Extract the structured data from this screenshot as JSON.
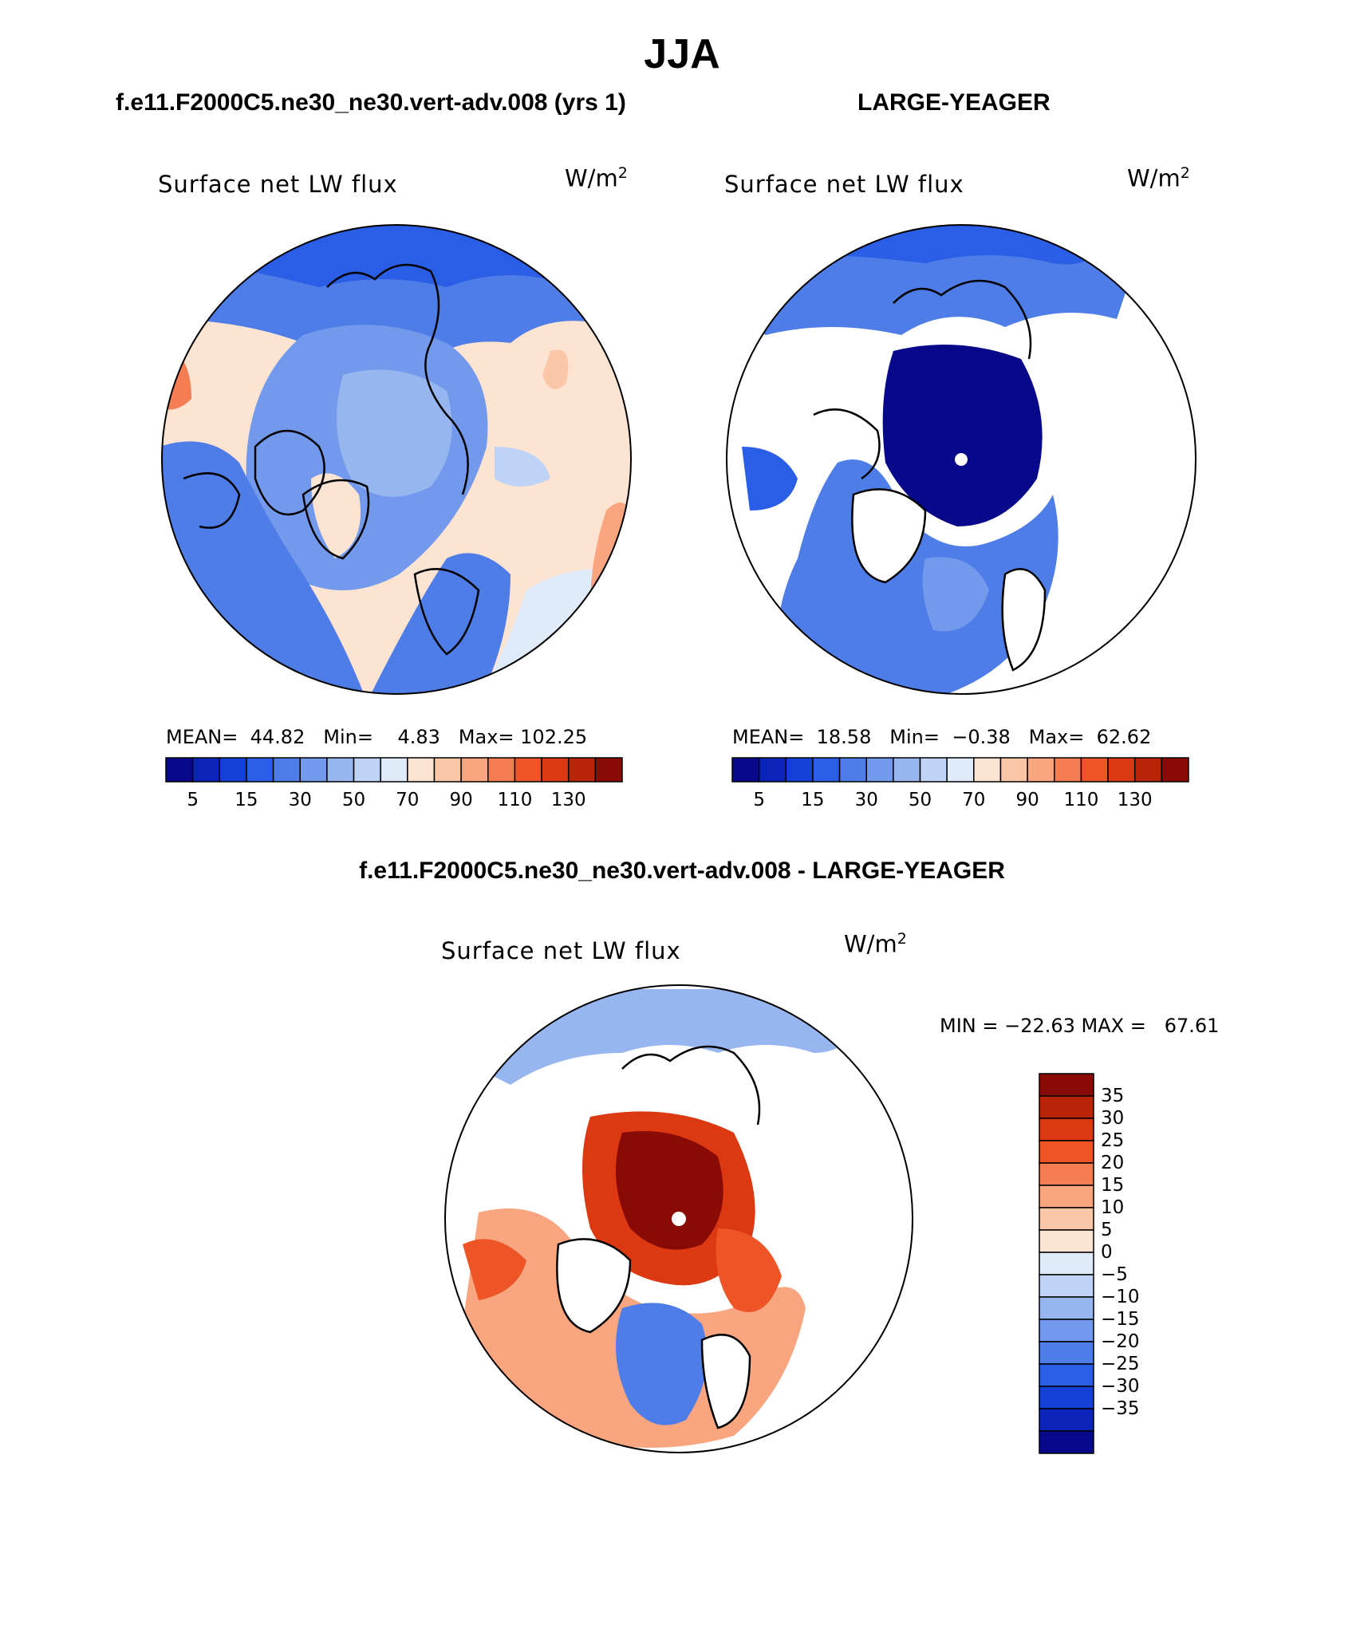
{
  "title": "JJA",
  "panels": [
    {
      "subtitle": "f.e11.F2000C5.ne30_ne30.vert-adv.008 (yrs 1)",
      "variable": "Surface net LW flux",
      "units": "W/m",
      "units_exp": "2",
      "mean_label": "MEAN=",
      "mean": "44.82",
      "min_label": "Min=",
      "min": "4.83",
      "max_label": "Max=",
      "max": "102.25"
    },
    {
      "subtitle": "LARGE-YEAGER",
      "variable": "Surface net LW flux",
      "units": "W/m",
      "units_exp": "2",
      "mean_label": "MEAN=",
      "mean": "18.58",
      "min_label": "Min=",
      "min": "−0.38",
      "max_label": "Max=",
      "max": "62.62"
    }
  ],
  "difference": {
    "subtitle": "f.e11.F2000C5.ne30_ne30.vert-adv.008 - LARGE-YEAGER",
    "variable": "Surface net LW flux",
    "units": "W/m",
    "units_exp": "2",
    "minmax_text": "MIN = −22.63 MAX =   67.61"
  },
  "abs_colorbar": {
    "colors": [
      "#08088a",
      "#0b24b8",
      "#1440d6",
      "#2a5ee6",
      "#4f7de8",
      "#7299ec",
      "#97b6f0",
      "#bed3f6",
      "#dfeafb",
      "#fde4d2",
      "#fbc7a8",
      "#f8a580",
      "#f47d52",
      "#ee5526",
      "#dc3912",
      "#b82408",
      "#8a0a05"
    ],
    "tick_labels": [
      "5",
      "15",
      "30",
      "50",
      "70",
      "90",
      "110",
      "130"
    ]
  },
  "diff_colorbar": {
    "colors_top_to_bottom": [
      "#8a0a05",
      "#b82408",
      "#dc3912",
      "#ee5526",
      "#f47d52",
      "#f8a580",
      "#fbc7a8",
      "#fde4d2",
      "#dfeafb",
      "#bed3f6",
      "#97b6f0",
      "#7299ec",
      "#4f7de8",
      "#2a5ee6",
      "#1440d6",
      "#0b24b8",
      "#08088a"
    ],
    "tick_labels": [
      "35",
      "30",
      "25",
      "20",
      "15",
      "10",
      "5",
      "0",
      "−5",
      "−10",
      "−15",
      "−20",
      "−25",
      "−30",
      "−35"
    ]
  }
}
